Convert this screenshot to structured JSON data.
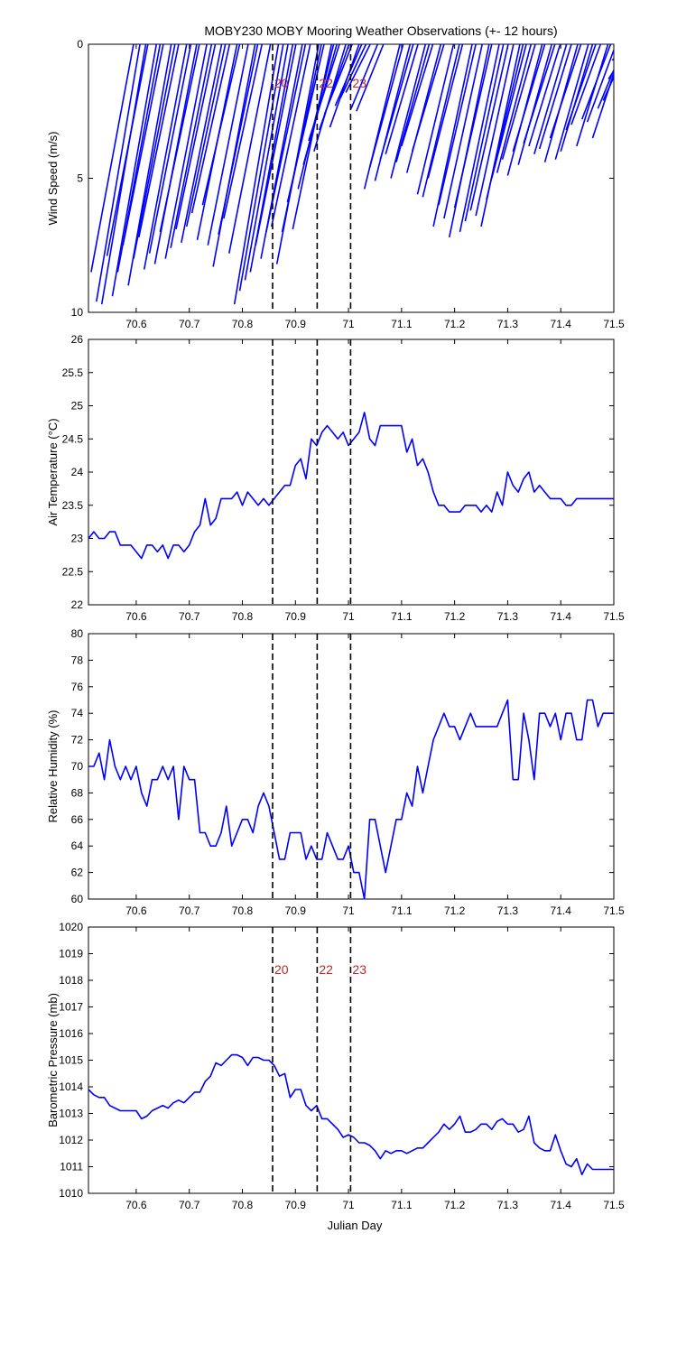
{
  "figure_title": "MOBY230 MOBY Mooring Weather Observations (+- 12 hours)",
  "xlabel": "Julian Day",
  "chart_data": [
    {
      "type": "line",
      "variant": "wind-sticks",
      "ylabel": "Wind Speed (m/s)",
      "xlim": [
        70.51,
        71.5
      ],
      "ylim": [
        0,
        10
      ],
      "y_reversed": true,
      "xticks": [
        "70.6",
        "70.7",
        "70.8",
        "70.9",
        "71",
        "71.1",
        "71.2",
        "71.3",
        "71.4",
        "71.5"
      ],
      "yticks": [
        "0",
        "5",
        "10"
      ],
      "color": "#0000ff",
      "sticks": [
        {
          "x": 70.515,
          "s": 8.5,
          "d": 0.08
        },
        {
          "x": 70.525,
          "s": 9.6,
          "d": 0.082
        },
        {
          "x": 70.535,
          "s": 9.7,
          "d": 0.083
        },
        {
          "x": 70.545,
          "s": 7.9,
          "d": 0.077
        },
        {
          "x": 70.555,
          "s": 9.4,
          "d": 0.083
        },
        {
          "x": 70.565,
          "s": 8.5,
          "d": 0.08
        },
        {
          "x": 70.575,
          "s": 7.5,
          "d": 0.076
        },
        {
          "x": 70.585,
          "s": 9.0,
          "d": 0.081
        },
        {
          "x": 70.595,
          "s": 8.0,
          "d": 0.078
        },
        {
          "x": 70.605,
          "s": 7.2,
          "d": 0.075
        },
        {
          "x": 70.615,
          "s": 8.4,
          "d": 0.08
        },
        {
          "x": 70.625,
          "s": 7.8,
          "d": 0.078
        },
        {
          "x": 70.635,
          "s": 8.2,
          "d": 0.079
        },
        {
          "x": 70.645,
          "s": 7.0,
          "d": 0.074
        },
        {
          "x": 70.655,
          "s": 8.0,
          "d": 0.078
        },
        {
          "x": 70.665,
          "s": 7.6,
          "d": 0.077
        },
        {
          "x": 70.675,
          "s": 6.9,
          "d": 0.074
        },
        {
          "x": 70.685,
          "s": 7.4,
          "d": 0.076
        },
        {
          "x": 70.695,
          "s": 6.8,
          "d": 0.073
        },
        {
          "x": 70.705,
          "s": 6.3,
          "d": 0.071
        },
        {
          "x": 70.715,
          "s": 7.3,
          "d": 0.075
        },
        {
          "x": 70.725,
          "s": 6.0,
          "d": 0.07
        },
        {
          "x": 70.735,
          "s": 7.5,
          "d": 0.076
        },
        {
          "x": 70.745,
          "s": 8.3,
          "d": 0.079
        },
        {
          "x": 70.755,
          "s": 7.1,
          "d": 0.074
        },
        {
          "x": 70.765,
          "s": 6.5,
          "d": 0.072
        },
        {
          "x": 70.775,
          "s": 7.8,
          "d": 0.078
        },
        {
          "x": 70.785,
          "s": 9.7,
          "d": 0.083
        },
        {
          "x": 70.795,
          "s": 9.2,
          "d": 0.082
        },
        {
          "x": 70.805,
          "s": 8.8,
          "d": 0.081
        },
        {
          "x": 70.815,
          "s": 8.5,
          "d": 0.08
        },
        {
          "x": 70.825,
          "s": 7.5,
          "d": 0.076
        },
        {
          "x": 70.835,
          "s": 8.0,
          "d": 0.078
        },
        {
          "x": 70.845,
          "s": 7.0,
          "d": 0.074
        },
        {
          "x": 70.855,
          "s": 6.8,
          "d": 0.073
        },
        {
          "x": 70.865,
          "s": 8.2,
          "d": 0.079
        },
        {
          "x": 70.875,
          "s": 7.0,
          "d": 0.074
        },
        {
          "x": 70.885,
          "s": 5.9,
          "d": 0.069
        },
        {
          "x": 70.895,
          "s": 6.9,
          "d": 0.073
        },
        {
          "x": 70.905,
          "s": 5.4,
          "d": 0.067
        },
        {
          "x": 70.915,
          "s": 4.5,
          "d": 0.063
        },
        {
          "x": 70.925,
          "s": 3.6,
          "d": 0.058
        },
        {
          "x": 70.935,
          "s": 4.0,
          "d": 0.06
        },
        {
          "x": 70.945,
          "s": 3.2,
          "d": 0.056
        },
        {
          "x": 70.955,
          "s": 2.6,
          "d": 0.052
        },
        {
          "x": 70.965,
          "s": 3.1,
          "d": 0.055
        },
        {
          "x": 70.975,
          "s": 2.3,
          "d": 0.05
        },
        {
          "x": 70.985,
          "s": 2.0,
          "d": 0.048
        },
        {
          "x": 70.995,
          "s": 1.8,
          "d": 0.046
        },
        {
          "x": 71.005,
          "s": 2.4,
          "d": 0.05
        },
        {
          "x": 71.015,
          "s": 2.5,
          "d": 0.051
        },
        {
          "x": 71.03,
          "s": 5.4,
          "d": 0.067
        },
        {
          "x": 71.04,
          "s": 4.6,
          "d": 0.063
        },
        {
          "x": 71.05,
          "s": 5.1,
          "d": 0.066
        },
        {
          "x": 71.06,
          "s": 4.3,
          "d": 0.062
        },
        {
          "x": 71.07,
          "s": 4.1,
          "d": 0.061
        },
        {
          "x": 71.08,
          "s": 5.0,
          "d": 0.065
        },
        {
          "x": 71.09,
          "s": 4.4,
          "d": 0.062
        },
        {
          "x": 71.1,
          "s": 3.8,
          "d": 0.059
        },
        {
          "x": 71.11,
          "s": 4.8,
          "d": 0.064
        },
        {
          "x": 71.12,
          "s": 4.0,
          "d": 0.06
        },
        {
          "x": 71.13,
          "s": 5.6,
          "d": 0.068
        },
        {
          "x": 71.14,
          "s": 5.7,
          "d": 0.069
        },
        {
          "x": 71.15,
          "s": 5.0,
          "d": 0.065
        },
        {
          "x": 71.16,
          "s": 6.8,
          "d": 0.073
        },
        {
          "x": 71.17,
          "s": 6.0,
          "d": 0.07
        },
        {
          "x": 71.18,
          "s": 6.5,
          "d": 0.072
        },
        {
          "x": 71.19,
          "s": 7.2,
          "d": 0.075
        },
        {
          "x": 71.2,
          "s": 6.1,
          "d": 0.07
        },
        {
          "x": 71.21,
          "s": 7.0,
          "d": 0.074
        },
        {
          "x": 71.22,
          "s": 6.6,
          "d": 0.072
        },
        {
          "x": 71.23,
          "s": 6.2,
          "d": 0.071
        },
        {
          "x": 71.24,
          "s": 6.4,
          "d": 0.071
        },
        {
          "x": 71.25,
          "s": 6.8,
          "d": 0.073
        },
        {
          "x": 71.26,
          "s": 5.8,
          "d": 0.069
        },
        {
          "x": 71.27,
          "s": 5.0,
          "d": 0.065
        },
        {
          "x": 71.28,
          "s": 4.8,
          "d": 0.064
        },
        {
          "x": 71.29,
          "s": 4.3,
          "d": 0.062
        },
        {
          "x": 71.3,
          "s": 4.9,
          "d": 0.065
        },
        {
          "x": 71.31,
          "s": 4.0,
          "d": 0.06
        },
        {
          "x": 71.32,
          "s": 4.5,
          "d": 0.063
        },
        {
          "x": 71.33,
          "s": 3.7,
          "d": 0.059
        },
        {
          "x": 71.34,
          "s": 3.8,
          "d": 0.059
        },
        {
          "x": 71.35,
          "s": 4.1,
          "d": 0.061
        },
        {
          "x": 71.36,
          "s": 3.9,
          "d": 0.06
        },
        {
          "x": 71.37,
          "s": 4.4,
          "d": 0.062
        },
        {
          "x": 71.38,
          "s": 3.5,
          "d": 0.058
        },
        {
          "x": 71.39,
          "s": 4.3,
          "d": 0.062
        },
        {
          "x": 71.4,
          "s": 4.0,
          "d": 0.06
        },
        {
          "x": 71.41,
          "s": 3.2,
          "d": 0.056
        },
        {
          "x": 71.42,
          "s": 3.0,
          "d": 0.055
        },
        {
          "x": 71.43,
          "s": 3.8,
          "d": 0.059
        },
        {
          "x": 71.44,
          "s": 2.8,
          "d": 0.054
        },
        {
          "x": 71.45,
          "s": 2.9,
          "d": 0.054
        },
        {
          "x": 71.46,
          "s": 3.5,
          "d": 0.058
        },
        {
          "x": 71.47,
          "s": 2.4,
          "d": 0.05
        },
        {
          "x": 71.48,
          "s": 2.1,
          "d": 0.048
        },
        {
          "x": 71.49,
          "s": 1.3,
          "d": 0.042
        },
        {
          "x": 71.497,
          "s": 0.6,
          "d": 0.03
        }
      ]
    },
    {
      "type": "line",
      "ylabel": "Air Temperature (°C)",
      "xlim": [
        70.51,
        71.5
      ],
      "ylim": [
        22,
        26
      ],
      "xticks": [
        "70.6",
        "70.7",
        "70.8",
        "70.9",
        "71",
        "71.1",
        "71.2",
        "71.3",
        "71.4",
        "71.5"
      ],
      "yticks": [
        "22",
        "22.5",
        "23",
        "23.5",
        "24",
        "24.5",
        "25",
        "25.5",
        "26"
      ],
      "color": "#0000ff",
      "x": [
        70.51,
        70.52,
        70.53,
        70.54,
        70.55,
        70.56,
        70.57,
        70.58,
        70.59,
        70.6,
        70.61,
        70.62,
        70.63,
        70.64,
        70.65,
        70.66,
        70.67,
        70.68,
        70.69,
        70.7,
        70.71,
        70.72,
        70.73,
        70.74,
        70.75,
        70.76,
        70.77,
        70.78,
        70.79,
        70.8,
        70.81,
        70.82,
        70.83,
        70.84,
        70.85,
        70.86,
        70.87,
        70.88,
        70.89,
        70.9,
        70.91,
        70.92,
        70.93,
        70.94,
        70.95,
        70.96,
        70.97,
        70.98,
        70.99,
        71.0,
        71.01,
        71.02,
        71.03,
        71.04,
        71.05,
        71.06,
        71.07,
        71.08,
        71.09,
        71.1,
        71.11,
        71.12,
        71.13,
        71.14,
        71.15,
        71.16,
        71.17,
        71.18,
        71.19,
        71.2,
        71.21,
        71.22,
        71.23,
        71.24,
        71.25,
        71.26,
        71.27,
        71.28,
        71.29,
        71.3,
        71.31,
        71.32,
        71.33,
        71.34,
        71.35,
        71.36,
        71.37,
        71.38,
        71.39,
        71.4,
        71.41,
        71.42,
        71.43,
        71.44,
        71.45,
        71.46,
        71.47,
        71.48,
        71.49,
        71.5
      ],
      "y": [
        23.0,
        23.1,
        23.0,
        23.0,
        23.1,
        23.1,
        22.9,
        22.9,
        22.9,
        22.8,
        22.7,
        22.9,
        22.9,
        22.8,
        22.9,
        22.7,
        22.9,
        22.9,
        22.8,
        22.9,
        23.1,
        23.2,
        23.6,
        23.2,
        23.3,
        23.6,
        23.6,
        23.6,
        23.7,
        23.5,
        23.7,
        23.6,
        23.5,
        23.6,
        23.5,
        23.6,
        23.7,
        23.8,
        23.8,
        24.1,
        24.2,
        23.9,
        24.5,
        24.4,
        24.6,
        24.7,
        24.6,
        24.5,
        24.6,
        24.4,
        24.5,
        24.6,
        24.9,
        24.5,
        24.4,
        24.7,
        24.7,
        24.7,
        24.7,
        24.7,
        24.3,
        24.5,
        24.1,
        24.2,
        24.0,
        23.7,
        23.5,
        23.5,
        23.4,
        23.4,
        23.4,
        23.5,
        23.5,
        23.5,
        23.4,
        23.5,
        23.4,
        23.7,
        23.5,
        24.0,
        23.8,
        23.7,
        23.9,
        24.0,
        23.7,
        23.8,
        23.7,
        23.6,
        23.6,
        23.6,
        23.5,
        23.5,
        23.6,
        23.6,
        23.6,
        23.6,
        23.6,
        23.6,
        23.6,
        23.6
      ]
    },
    {
      "type": "line",
      "ylabel": "Relative Humidity (%)",
      "xlim": [
        70.51,
        71.5
      ],
      "ylim": [
        60,
        80
      ],
      "xticks": [
        "70.6",
        "70.7",
        "70.8",
        "70.9",
        "71",
        "71.1",
        "71.2",
        "71.3",
        "71.4",
        "71.5"
      ],
      "yticks": [
        "60",
        "62",
        "64",
        "66",
        "68",
        "70",
        "72",
        "74",
        "76",
        "78",
        "80"
      ],
      "color": "#0000ff",
      "x": [
        70.51,
        70.52,
        70.53,
        70.54,
        70.55,
        70.56,
        70.57,
        70.58,
        70.59,
        70.6,
        70.61,
        70.62,
        70.63,
        70.64,
        70.65,
        70.66,
        70.67,
        70.68,
        70.69,
        70.7,
        70.71,
        70.72,
        70.73,
        70.74,
        70.75,
        70.76,
        70.77,
        70.78,
        70.79,
        70.8,
        70.81,
        70.82,
        70.83,
        70.84,
        70.85,
        70.86,
        70.87,
        70.88,
        70.89,
        70.9,
        70.91,
        70.92,
        70.93,
        70.94,
        70.95,
        70.96,
        70.97,
        70.98,
        70.99,
        71.0,
        71.01,
        71.02,
        71.03,
        71.04,
        71.05,
        71.06,
        71.07,
        71.08,
        71.09,
        71.1,
        71.11,
        71.12,
        71.13,
        71.14,
        71.15,
        71.16,
        71.17,
        71.18,
        71.19,
        71.2,
        71.21,
        71.22,
        71.23,
        71.24,
        71.25,
        71.26,
        71.27,
        71.28,
        71.29,
        71.3,
        71.31,
        71.32,
        71.33,
        71.34,
        71.35,
        71.36,
        71.37,
        71.38,
        71.39,
        71.4,
        71.41,
        71.42,
        71.43,
        71.44,
        71.45,
        71.46,
        71.47,
        71.48,
        71.49,
        71.5
      ],
      "y": [
        70,
        70,
        71,
        69,
        72,
        70,
        69,
        70,
        69,
        70,
        68,
        67,
        69,
        69,
        70,
        69,
        70,
        66,
        70,
        69,
        69,
        65,
        65,
        64,
        64,
        65,
        67,
        64,
        65,
        66,
        66,
        65,
        67,
        68,
        67,
        65,
        63,
        63,
        65,
        65,
        65,
        63,
        64,
        63,
        63,
        65,
        64,
        63,
        63,
        64,
        62,
        62,
        60,
        66,
        66,
        64,
        62,
        64,
        66,
        66,
        68,
        67,
        70,
        68,
        70,
        72,
        73,
        74,
        73,
        73,
        72,
        73,
        74,
        73,
        73,
        73,
        73,
        73,
        74,
        75,
        69,
        69,
        74,
        72,
        69,
        74,
        74,
        73,
        74,
        72,
        74,
        74,
        72,
        72,
        75,
        75,
        73,
        74,
        74,
        74
      ]
    },
    {
      "type": "line",
      "ylabel": "Barometric Pressure (mb)",
      "xlim": [
        70.51,
        71.5
      ],
      "ylim": [
        1010,
        1020
      ],
      "xticks": [
        "70.6",
        "70.7",
        "70.8",
        "70.9",
        "71",
        "71.1",
        "71.2",
        "71.3",
        "71.4",
        "71.5"
      ],
      "yticks": [
        "1010",
        "1011",
        "1012",
        "1013",
        "1014",
        "1015",
        "1016",
        "1017",
        "1018",
        "1019",
        "1020"
      ],
      "color": "#0000ff",
      "x": [
        70.51,
        70.52,
        70.53,
        70.54,
        70.55,
        70.56,
        70.57,
        70.58,
        70.59,
        70.6,
        70.61,
        70.62,
        70.63,
        70.64,
        70.65,
        70.66,
        70.67,
        70.68,
        70.69,
        70.7,
        70.71,
        70.72,
        70.73,
        70.74,
        70.75,
        70.76,
        70.77,
        70.78,
        70.79,
        70.8,
        70.81,
        70.82,
        70.83,
        70.84,
        70.85,
        70.86,
        70.87,
        70.88,
        70.89,
        70.9,
        70.91,
        70.92,
        70.93,
        70.94,
        70.95,
        70.96,
        70.97,
        70.98,
        70.99,
        71.0,
        71.01,
        71.02,
        71.03,
        71.04,
        71.05,
        71.06,
        71.07,
        71.08,
        71.09,
        71.1,
        71.11,
        71.12,
        71.13,
        71.14,
        71.15,
        71.16,
        71.17,
        71.18,
        71.19,
        71.2,
        71.21,
        71.22,
        71.23,
        71.24,
        71.25,
        71.26,
        71.27,
        71.28,
        71.29,
        71.3,
        71.31,
        71.32,
        71.33,
        71.34,
        71.35,
        71.36,
        71.37,
        71.38,
        71.39,
        71.4,
        71.41,
        71.42,
        71.43,
        71.44,
        71.45,
        71.46,
        71.47,
        71.48,
        71.49,
        71.5
      ],
      "y": [
        1013.9,
        1013.7,
        1013.6,
        1013.6,
        1013.3,
        1013.2,
        1013.1,
        1013.1,
        1013.1,
        1013.1,
        1012.8,
        1012.9,
        1013.1,
        1013.2,
        1013.3,
        1013.2,
        1013.4,
        1013.5,
        1013.4,
        1013.6,
        1013.8,
        1013.8,
        1014.2,
        1014.4,
        1014.9,
        1014.8,
        1015.0,
        1015.2,
        1015.2,
        1015.1,
        1014.8,
        1015.1,
        1015.1,
        1015.0,
        1015.0,
        1014.8,
        1014.4,
        1014.5,
        1013.6,
        1013.9,
        1013.9,
        1013.3,
        1013.1,
        1013.3,
        1012.8,
        1012.8,
        1012.6,
        1012.4,
        1012.1,
        1012.2,
        1012.1,
        1011.9,
        1011.9,
        1011.8,
        1011.6,
        1011.3,
        1011.6,
        1011.5,
        1011.6,
        1011.6,
        1011.5,
        1011.6,
        1011.7,
        1011.7,
        1011.9,
        1012.1,
        1012.3,
        1012.6,
        1012.4,
        1012.6,
        1012.9,
        1012.3,
        1012.3,
        1012.4,
        1012.6,
        1012.6,
        1012.4,
        1012.7,
        1012.8,
        1012.6,
        1012.6,
        1012.3,
        1012.4,
        1012.9,
        1011.9,
        1011.7,
        1011.6,
        1011.6,
        1012.2,
        1011.6,
        1011.1,
        1011.0,
        1011.3,
        1010.7,
        1011.1,
        1010.9,
        1010.9,
        1010.9,
        1010.9,
        1010.9
      ]
    }
  ],
  "event_markers": [
    {
      "x": 70.857,
      "label": "20"
    },
    {
      "x": 70.941,
      "label": "22"
    },
    {
      "x": 71.004,
      "label": "23"
    }
  ],
  "marker_label_panels": [
    0,
    3
  ]
}
